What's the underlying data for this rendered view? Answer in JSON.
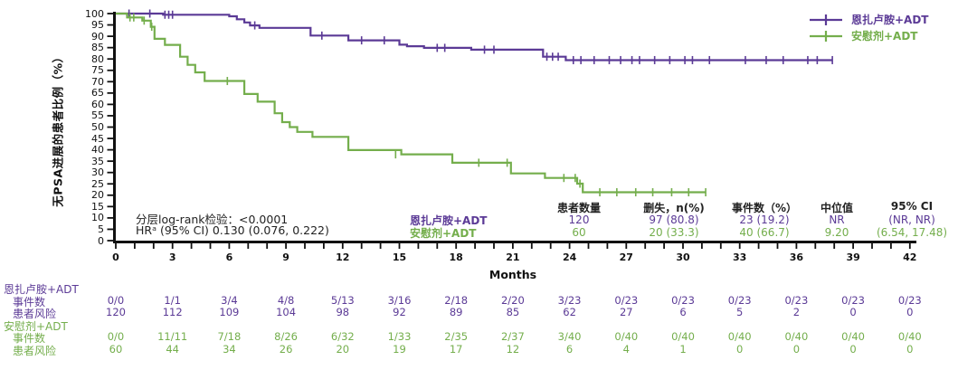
{
  "accent_colors": {
    "enzalutamide": "#5b3a96",
    "placebo": "#74ae4c",
    "axis": "#111111"
  },
  "legend": {
    "items": [
      {
        "label": "恩扎卢胺+ADT",
        "color": "#5b3a96",
        "symbol": "line-with-censor-tick"
      },
      {
        "label": "安慰剂+ADT",
        "color": "#74ae4c",
        "symbol": "line-with-censor-tick"
      }
    ]
  },
  "inplot_table": {
    "group_labels": [
      "恩扎卢胺+ADT",
      "安慰剂+ADT"
    ],
    "headers": [
      "患者数量",
      "删失，n(%)",
      "事件数（%）",
      "中位值",
      "95% CI"
    ],
    "rows": [
      [
        "120",
        "97 (80.8)",
        "23 (19.2)",
        "NR",
        "(NR, NR)"
      ],
      [
        "60",
        "20 (33.3)",
        "40 (66.7)",
        "9.20",
        "(6.54, 17.48)"
      ]
    ]
  },
  "risk_table": {
    "groups": [
      {
        "name": "恩扎卢胺+ADT",
        "color": "#5b3a96",
        "rows": [
          {
            "label": "事件数",
            "values": [
              "0/0",
              "1/1",
              "3/4",
              "4/8",
              "5/13",
              "3/16",
              "2/18",
              "2/20",
              "3/23",
              "0/23",
              "0/23",
              "0/23",
              "0/23",
              "0/23",
              "0/23"
            ]
          },
          {
            "label": "患者风险",
            "values": [
              "120",
              "112",
              "109",
              "104",
              "98",
              "92",
              "89",
              "85",
              "62",
              "27",
              "6",
              "5",
              "2",
              "0",
              "0"
            ]
          }
        ]
      },
      {
        "name": "安慰剂+ADT",
        "color": "#74ae4c",
        "rows": [
          {
            "label": "事件数",
            "values": [
              "0/0",
              "11/11",
              "7/18",
              "8/26",
              "6/32",
              "1/33",
              "2/35",
              "2/37",
              "3/40",
              "0/40",
              "0/40",
              "0/40",
              "0/40",
              "0/40",
              "0/40"
            ]
          },
          {
            "label": "患者风险",
            "values": [
              "60",
              "44",
              "34",
              "26",
              "20",
              "19",
              "17",
              "12",
              "6",
              "4",
              "1",
              "0",
              "0",
              "0",
              "0"
            ]
          }
        ]
      }
    ]
  },
  "chart_data": {
    "type": "line",
    "subtype": "kaplan-meier-step",
    "xlabel": "Months",
    "ylabel": "无PSA进展的患者比例（%）",
    "xlim": [
      0,
      42
    ],
    "ylim": [
      0,
      100
    ],
    "x_tick_labels": [
      0,
      3,
      6,
      9,
      12,
      15,
      18,
      21,
      24,
      27,
      30,
      33,
      36,
      39,
      42
    ],
    "x_minor_tick_step": 1,
    "y_tick_step": 5,
    "grid": "off",
    "legend_position": "top-right",
    "annotations": {
      "logrank": "分层log-rank检验：<0.0001",
      "hr": "HRᵃ (95% CI) 0.130 (0.076, 0.222)"
    },
    "series": [
      {
        "name": "恩扎卢胺+ADT",
        "color": "#5b3a96",
        "end_month": 37.9,
        "steps": [
          [
            0,
            100
          ],
          [
            2.5,
            99.5
          ],
          [
            6.0,
            98.8
          ],
          [
            6.4,
            97.5
          ],
          [
            6.8,
            96.1
          ],
          [
            7.1,
            94.8
          ],
          [
            7.6,
            93.7
          ],
          [
            10.3,
            90.3
          ],
          [
            12.3,
            88.2
          ],
          [
            15.0,
            86.3
          ],
          [
            15.4,
            85.6
          ],
          [
            16.3,
            84.9
          ],
          [
            18.8,
            84.1
          ],
          [
            22.6,
            81.0
          ],
          [
            23.8,
            79.5
          ]
        ],
        "censors": [
          [
            0.7,
            100
          ],
          [
            1.8,
            100
          ],
          [
            2.6,
            99.5
          ],
          [
            2.8,
            99.5
          ],
          [
            3.0,
            99.5
          ],
          [
            7.35,
            94.8
          ],
          [
            10.9,
            90.3
          ],
          [
            13.0,
            88.2
          ],
          [
            14.2,
            88.2
          ],
          [
            17.0,
            84.9
          ],
          [
            17.4,
            84.9
          ],
          [
            19.5,
            84.1
          ],
          [
            20.0,
            84.1
          ],
          [
            22.8,
            81.0
          ],
          [
            23.1,
            81.0
          ],
          [
            23.4,
            81.0
          ],
          [
            24.2,
            79.5
          ],
          [
            24.6,
            79.5
          ],
          [
            25.3,
            79.5
          ],
          [
            26.1,
            79.5
          ],
          [
            26.7,
            79.5
          ],
          [
            27.3,
            79.5
          ],
          [
            27.7,
            79.5
          ],
          [
            28.5,
            79.5
          ],
          [
            29.3,
            79.5
          ],
          [
            30.1,
            79.5
          ],
          [
            30.5,
            79.5
          ],
          [
            31.4,
            79.5
          ],
          [
            33.3,
            79.5
          ],
          [
            34.4,
            79.5
          ],
          [
            35.3,
            79.5
          ],
          [
            36.6,
            79.5
          ],
          [
            37.1,
            79.5
          ],
          [
            37.9,
            79.5
          ]
        ]
      },
      {
        "name": "安慰剂+ADT",
        "color": "#74ae4c",
        "end_month": 31.2,
        "steps": [
          [
            0,
            100
          ],
          [
            0.6,
            98.3
          ],
          [
            1.4,
            96.9
          ],
          [
            1.85,
            94.2
          ],
          [
            2.05,
            88.9
          ],
          [
            2.6,
            86.2
          ],
          [
            3.4,
            81.0
          ],
          [
            3.8,
            77.4
          ],
          [
            4.2,
            74.1
          ],
          [
            4.7,
            70.3
          ],
          [
            6.8,
            64.6
          ],
          [
            7.5,
            61.2
          ],
          [
            8.4,
            56.1
          ],
          [
            8.8,
            52.2
          ],
          [
            9.2,
            50.0
          ],
          [
            9.6,
            47.9
          ],
          [
            10.4,
            45.7
          ],
          [
            12.3,
            39.9
          ],
          [
            15.1,
            38.0
          ],
          [
            17.8,
            34.3
          ],
          [
            20.9,
            29.6
          ],
          [
            22.7,
            27.6
          ],
          [
            24.4,
            25.1
          ],
          [
            24.7,
            21.3
          ]
        ],
        "censors": [
          [
            0.75,
            98.3
          ],
          [
            0.95,
            98.3
          ],
          [
            1.5,
            96.9
          ],
          [
            1.9,
            94.2
          ],
          [
            5.9,
            70.3
          ],
          [
            14.8,
            38.0
          ],
          [
            19.2,
            34.3
          ],
          [
            20.7,
            34.3
          ],
          [
            23.7,
            27.6
          ],
          [
            24.3,
            27.6
          ],
          [
            24.55,
            25.1
          ],
          [
            25.6,
            21.3
          ],
          [
            26.5,
            21.3
          ],
          [
            27.5,
            21.3
          ],
          [
            28.4,
            21.3
          ],
          [
            29.4,
            21.3
          ],
          [
            30.3,
            21.3
          ],
          [
            31.2,
            21.3
          ]
        ]
      }
    ],
    "stats_summary": {
      "median": {
        "恩扎卢胺+ADT": "NR",
        "安慰剂+ADT": "9.20"
      },
      "ci95": {
        "恩扎卢胺+ADT": "(NR, NR)",
        "安慰剂+ADT": "(6.54, 17.48)"
      }
    }
  }
}
